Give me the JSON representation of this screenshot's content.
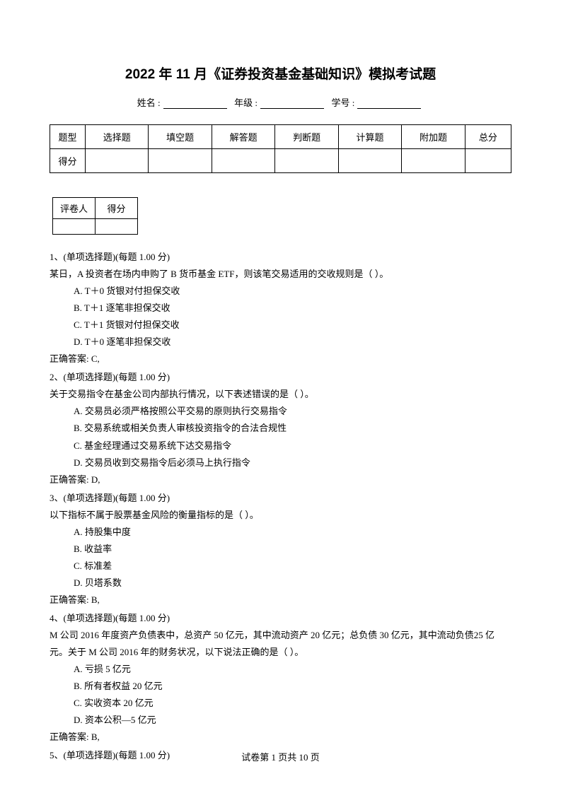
{
  "title": "2022 年 11 月《证券投资基金基础知识》模拟考试题",
  "info": {
    "name_label": "姓名 :",
    "grade_label": "年级 :",
    "id_label": "学号 :"
  },
  "score_table": {
    "row_type": "题型",
    "row_score": "得分",
    "cols": [
      "选择题",
      "填空题",
      "解答题",
      "判断题",
      "计算题",
      "附加题",
      "总分"
    ]
  },
  "grader_table": {
    "grader": "评卷人",
    "score": "得分"
  },
  "questions": [
    {
      "num": "1",
      "type_text": "(单项选择题)(每题 1.00 分)",
      "stem": "某日，A 投资者在场内申购了 B 货币基金 ETF，则该笔交易适用的交收规则是（    ）。",
      "opts": [
        "A. T＋0 货银对付担保交收",
        "B. T＋1 逐笔非担保交收",
        "C. T＋1 货银对付担保交收",
        "D. T＋0 逐笔非担保交收"
      ],
      "answer": "正确答案: C,"
    },
    {
      "num": "2",
      "type_text": "(单项选择题)(每题 1.00 分)",
      "stem": "关于交易指令在基金公司内部执行情况，以下表述错误的是（    ）。",
      "opts": [
        "A. 交易员必须严格按照公平交易的原则执行交易指令",
        "B. 交易系统或相关负责人审核投资指令的合法合规性",
        "C. 基金经理通过交易系统下达交易指令",
        "D. 交易员收到交易指令后必须马上执行指令"
      ],
      "answer": "正确答案: D,"
    },
    {
      "num": "3",
      "type_text": "(单项选择题)(每题 1.00 分)",
      "stem": "以下指标不属于股票基金风险的衡量指标的是（    ）。",
      "opts": [
        "A. 持股集中度",
        "B. 收益率",
        "C. 标准差",
        "D. 贝塔系数"
      ],
      "answer": "正确答案: B,"
    },
    {
      "num": "4",
      "type_text": "(单项选择题)(每题 1.00 分)",
      "stem": "M 公司 2016 年度资产负债表中，总资产 50 亿元，其中流动资产 20 亿元；总负债 30 亿元，其中流动负债25 亿元。关于 M 公司 2016 年的财务状况，以下说法正确的是（   ）。",
      "opts": [
        "A. 亏损 5 亿元",
        "B. 所有者权益 20 亿元",
        "C. 实收资本 20 亿元",
        "D. 资本公积—5 亿元"
      ],
      "answer": "正确答案: B,"
    },
    {
      "num": "5",
      "type_text": "(单项选择题)(每题 1.00 分)",
      "stem": "",
      "opts": [],
      "answer": ""
    }
  ],
  "footer": "试卷第 1 页共 10 页"
}
